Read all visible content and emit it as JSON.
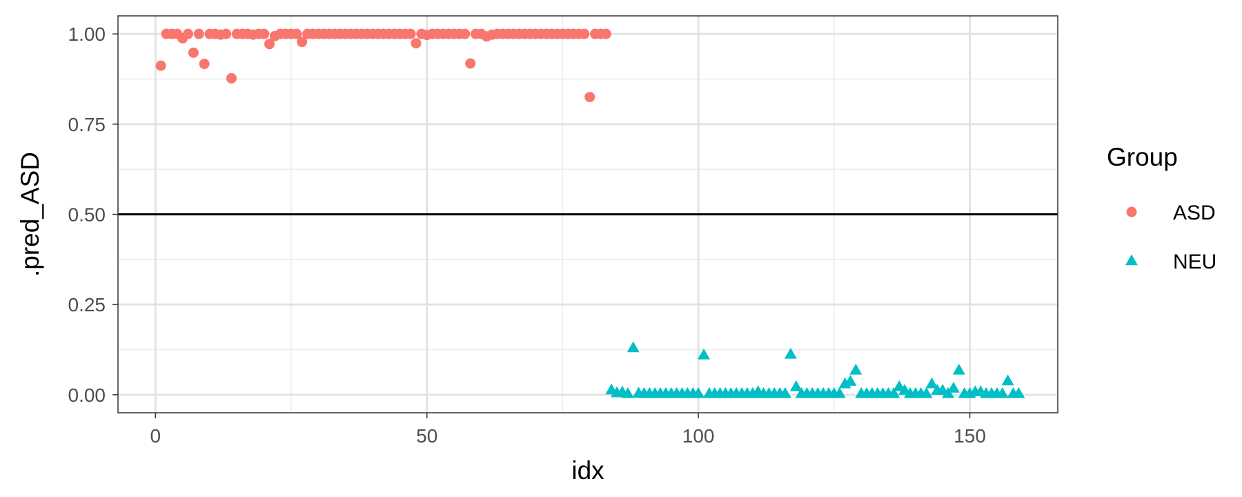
{
  "chart_data": {
    "type": "scatter",
    "xlabel": "idx",
    "ylabel": ".pred_ASD",
    "xlim": [
      -6.9,
      166.2
    ],
    "ylim": [
      -0.05,
      1.05
    ],
    "xticks": [
      0,
      50,
      100,
      150
    ],
    "xtick_labels": [
      "0",
      "50",
      "100",
      "150"
    ],
    "xticks_minor": [
      25,
      75,
      125
    ],
    "yticks": [
      0,
      0.25,
      0.5,
      0.75,
      1.0
    ],
    "ytick_labels": [
      "0.00",
      "0.25",
      "0.50",
      "0.75",
      "1.00"
    ],
    "yticks_minor": [
      0.125,
      0.375,
      0.625,
      0.875
    ],
    "hline": 0.5,
    "grid": true,
    "legend": {
      "title": "Group",
      "placement": "right"
    },
    "series": [
      {
        "name": "ASD",
        "marker": "circle",
        "color": "#F8766D",
        "x": [
          1,
          2,
          3,
          4,
          5,
          6,
          7,
          8,
          9,
          10,
          11,
          12,
          13,
          14,
          15,
          16,
          17,
          18,
          19,
          20,
          21,
          22,
          23,
          24,
          25,
          26,
          27,
          28,
          29,
          30,
          31,
          32,
          33,
          34,
          35,
          36,
          37,
          38,
          39,
          40,
          41,
          42,
          43,
          44,
          45,
          46,
          47,
          48,
          49,
          50,
          51,
          52,
          53,
          54,
          55,
          56,
          57,
          58,
          59,
          60,
          61,
          62,
          63,
          64,
          65,
          66,
          67,
          68,
          69,
          70,
          71,
          72,
          73,
          74,
          75,
          76,
          77,
          78,
          79,
          80,
          81,
          82,
          83
        ],
        "y": [
          0.912,
          1.0,
          1.0,
          1.0,
          0.988,
          1.0,
          0.948,
          1.0,
          0.917,
          1.0,
          1.0,
          0.998,
          1.0,
          0.877,
          1.0,
          1.0,
          1.0,
          0.998,
          1.0,
          1.0,
          0.972,
          0.994,
          1.0,
          1.0,
          1.0,
          1.0,
          0.978,
          1.0,
          1.0,
          1.0,
          1.0,
          1.0,
          1.0,
          1.0,
          1.0,
          1.0,
          1.0,
          1.0,
          1.0,
          1.0,
          1.0,
          1.0,
          1.0,
          1.0,
          1.0,
          1.0,
          1.0,
          0.974,
          1.0,
          0.997,
          1.0,
          1.0,
          1.0,
          1.0,
          1.0,
          1.0,
          1.0,
          0.918,
          1.0,
          1.0,
          0.993,
          0.998,
          1.0,
          1.0,
          1.0,
          1.0,
          1.0,
          1.0,
          1.0,
          1.0,
          1.0,
          1.0,
          1.0,
          1.0,
          1.0,
          1.0,
          1.0,
          1.0,
          1.0,
          0.825,
          1.0,
          1.0,
          1.0
        ]
      },
      {
        "name": "NEU",
        "marker": "triangle",
        "color": "#00BFC4",
        "x": [
          84,
          85,
          86,
          87,
          88,
          89,
          90,
          91,
          92,
          93,
          94,
          95,
          96,
          97,
          98,
          99,
          100,
          101,
          102,
          103,
          104,
          105,
          106,
          107,
          108,
          109,
          110,
          111,
          112,
          113,
          114,
          115,
          116,
          117,
          118,
          119,
          120,
          121,
          122,
          123,
          124,
          125,
          126,
          127,
          128,
          129,
          130,
          131,
          132,
          133,
          134,
          135,
          136,
          137,
          138,
          139,
          140,
          141,
          142,
          143,
          144,
          145,
          146,
          147,
          148,
          149,
          150,
          151,
          152,
          153,
          154,
          155,
          156,
          157,
          158,
          159
        ],
        "y": [
          0.013,
          0.005,
          0.007,
          0.003,
          0.13,
          0.004,
          0.003,
          0.003,
          0.003,
          0.003,
          0.003,
          0.003,
          0.003,
          0.003,
          0.003,
          0.003,
          0.003,
          0.11,
          0.003,
          0.003,
          0.003,
          0.003,
          0.003,
          0.003,
          0.003,
          0.003,
          0.003,
          0.008,
          0.003,
          0.003,
          0.003,
          0.003,
          0.003,
          0.112,
          0.022,
          0.003,
          0.003,
          0.003,
          0.003,
          0.003,
          0.003,
          0.003,
          0.003,
          0.03,
          0.037,
          0.068,
          0.003,
          0.003,
          0.003,
          0.003,
          0.003,
          0.003,
          0.003,
          0.022,
          0.012,
          0.003,
          0.003,
          0.003,
          0.003,
          0.03,
          0.012,
          0.012,
          0.003,
          0.018,
          0.068,
          0.003,
          0.003,
          0.008,
          0.008,
          0.003,
          0.003,
          0.003,
          0.003,
          0.038,
          0.003,
          0.003
        ]
      }
    ]
  }
}
